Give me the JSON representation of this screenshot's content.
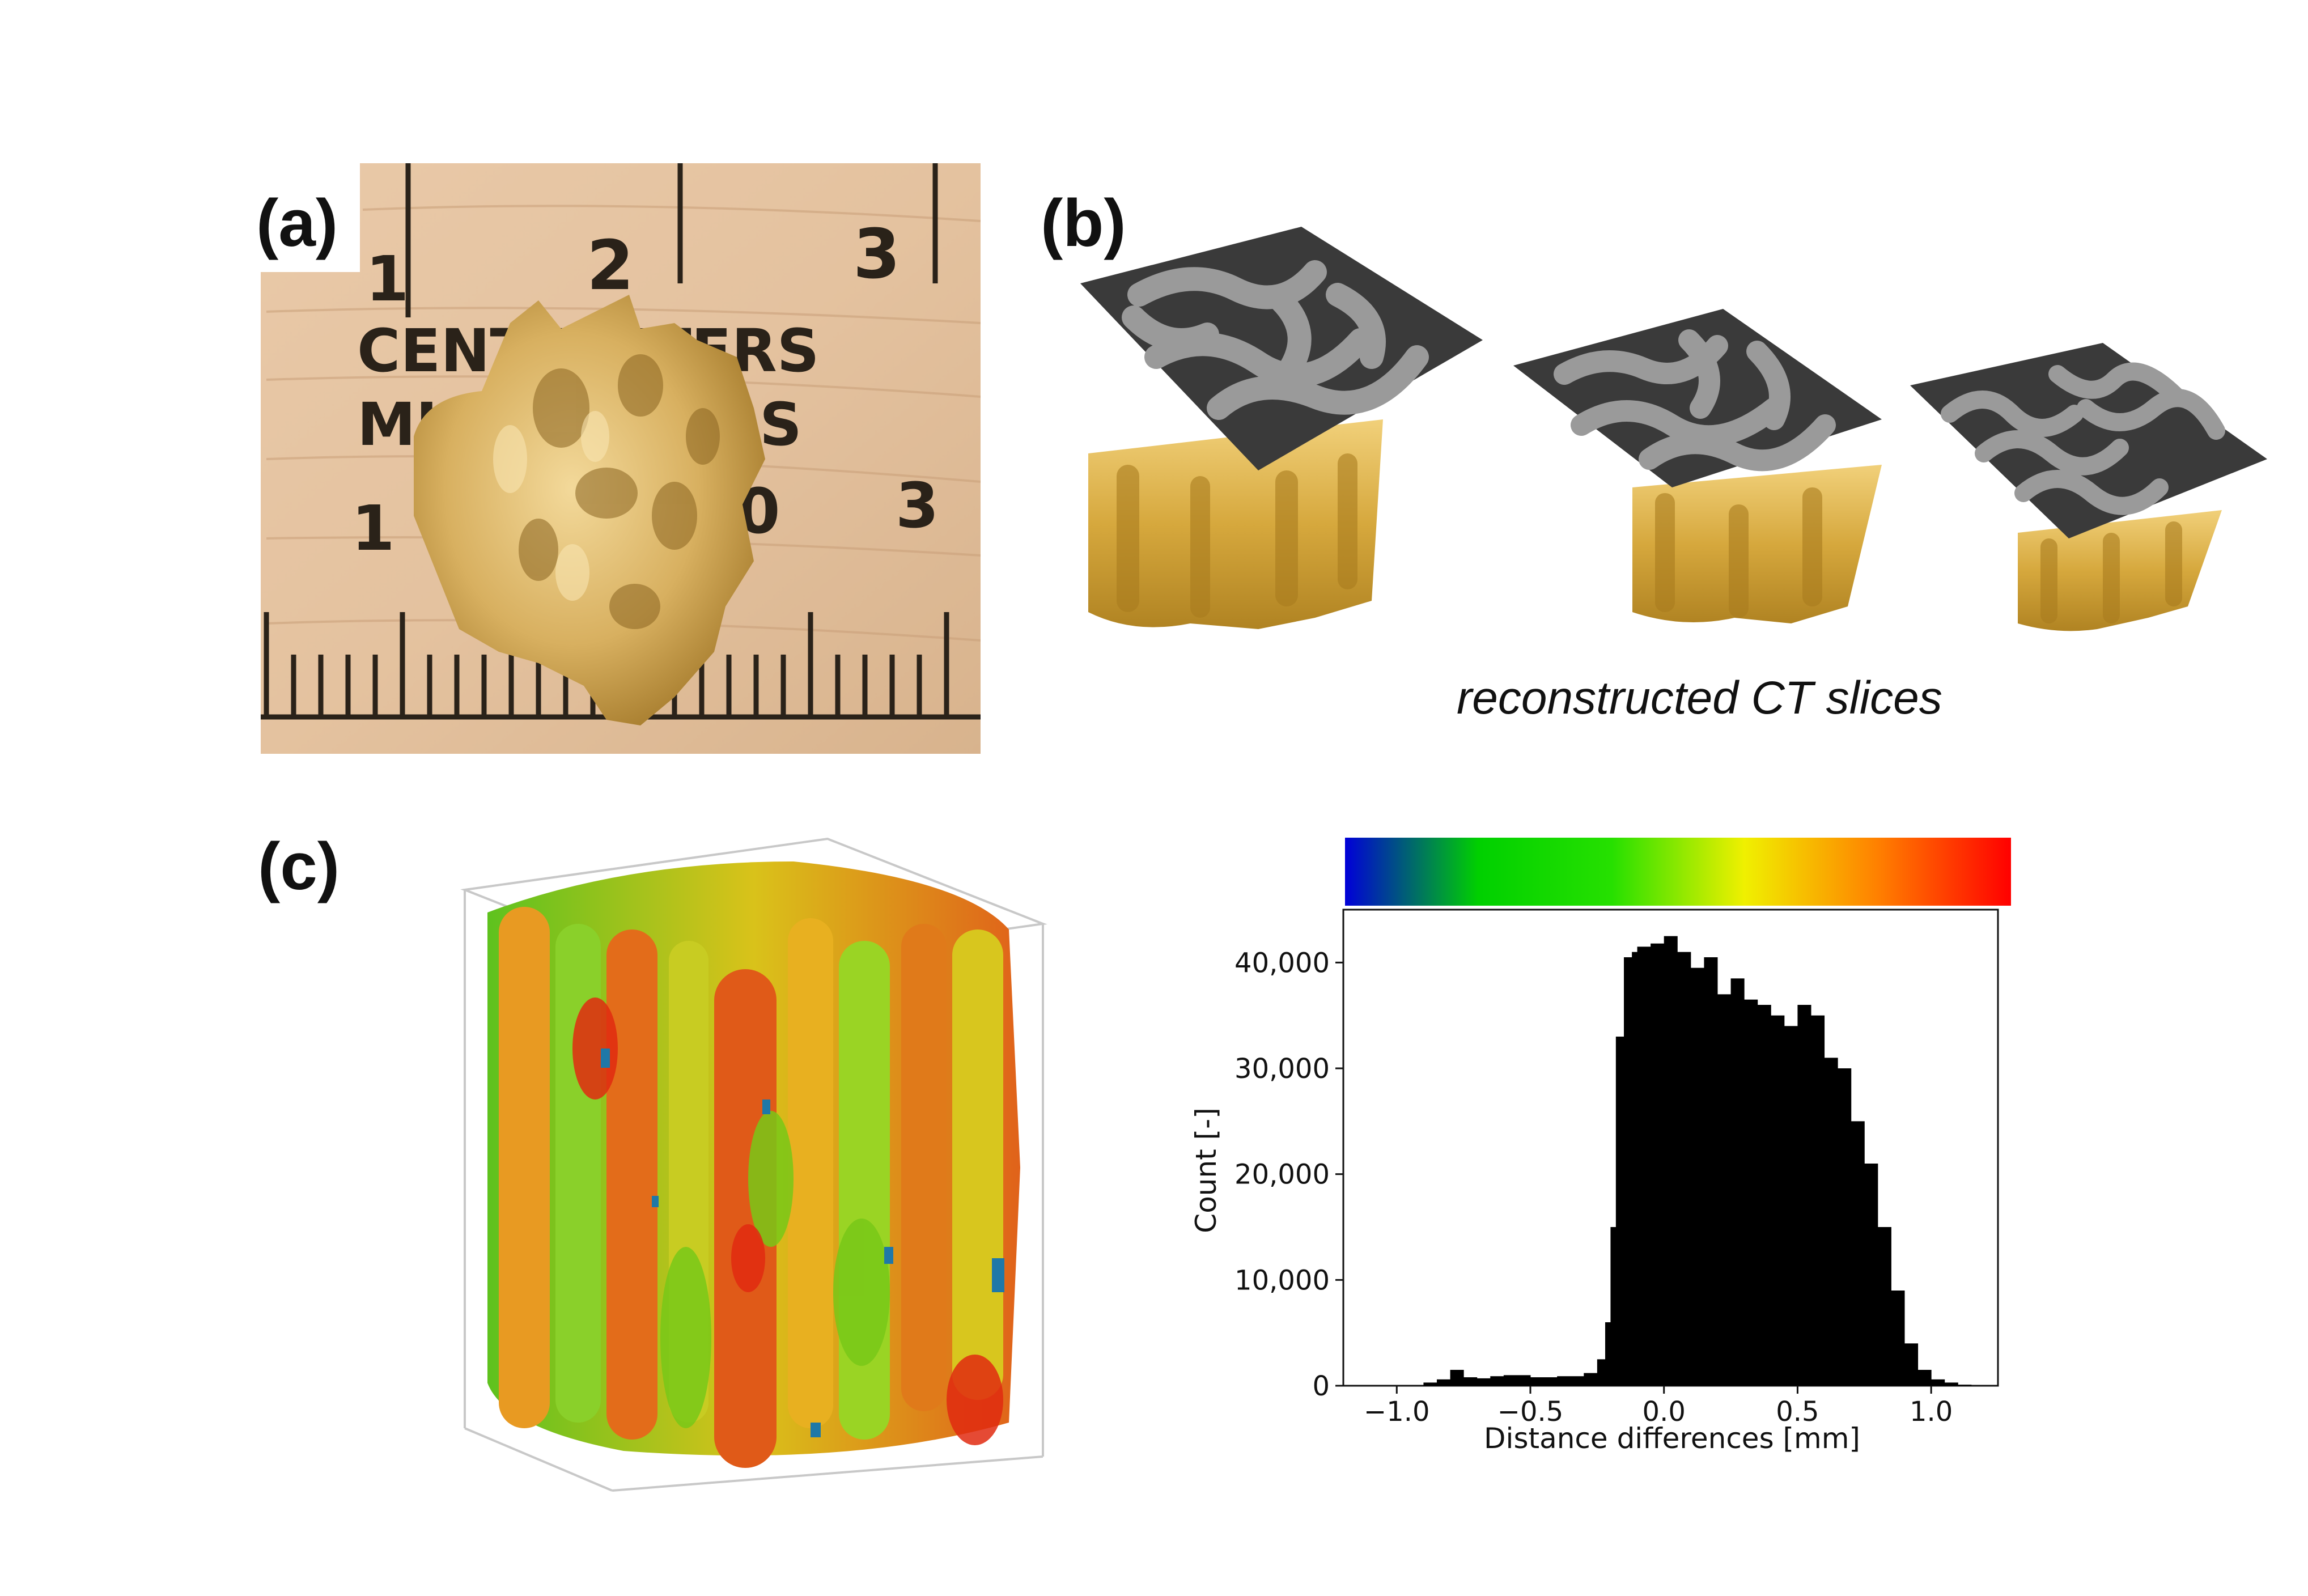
{
  "figure": {
    "panel_a": {
      "label": "(a)",
      "ruler_text": [
        "CENTIMETERS",
        "MILLIMETERS"
      ],
      "ruler_numbers": [
        "1",
        "2",
        "3",
        "1",
        "0",
        "3"
      ]
    },
    "panel_b": {
      "label": "(b)",
      "caption": "reconstructed CT slices"
    },
    "panel_c": {
      "label": "(c)"
    }
  },
  "colorbar": {
    "colors": [
      "#0000d8",
      "#00d000",
      "#26e000",
      "#f0f000",
      "#ff8000",
      "#ff0000"
    ]
  },
  "chart_data": {
    "type": "bar",
    "title": "",
    "xlabel": "Distance differences [mm]",
    "ylabel": "Count [-]",
    "xlim": [
      -1.2,
      1.25
    ],
    "ylim": [
      0,
      45000
    ],
    "xticks": [
      -1.0,
      -0.5,
      0.0,
      0.5,
      1.0
    ],
    "xtick_labels": [
      "−1.0",
      "−0.5",
      "0.0",
      "0.5",
      "1.0"
    ],
    "yticks": [
      0,
      10000,
      20000,
      30000,
      40000
    ],
    "ytick_labels": [
      "0",
      "10,000",
      "20,000",
      "30,000",
      "40,000"
    ],
    "x": [
      -1.0,
      -0.9,
      -0.85,
      -0.8,
      -0.75,
      -0.7,
      -0.65,
      -0.6,
      -0.5,
      -0.4,
      -0.3,
      -0.25,
      -0.22,
      -0.2,
      -0.18,
      -0.15,
      -0.12,
      -0.1,
      -0.05,
      0.0,
      0.05,
      0.1,
      0.15,
      0.2,
      0.25,
      0.3,
      0.35,
      0.4,
      0.45,
      0.5,
      0.55,
      0.6,
      0.65,
      0.7,
      0.75,
      0.8,
      0.85,
      0.9,
      0.95,
      1.0,
      1.05,
      1.1,
      1.15
    ],
    "values": [
      0,
      300,
      600,
      1500,
      800,
      700,
      900,
      1000,
      800,
      900,
      1200,
      2500,
      6000,
      15000,
      33000,
      40500,
      41000,
      41500,
      41800,
      42500,
      41000,
      39500,
      40500,
      37000,
      38500,
      36500,
      36000,
      35000,
      34000,
      36000,
      35000,
      31000,
      30000,
      25000,
      21000,
      15000,
      9000,
      4000,
      1500,
      600,
      300,
      100,
      0
    ],
    "grid": false
  }
}
